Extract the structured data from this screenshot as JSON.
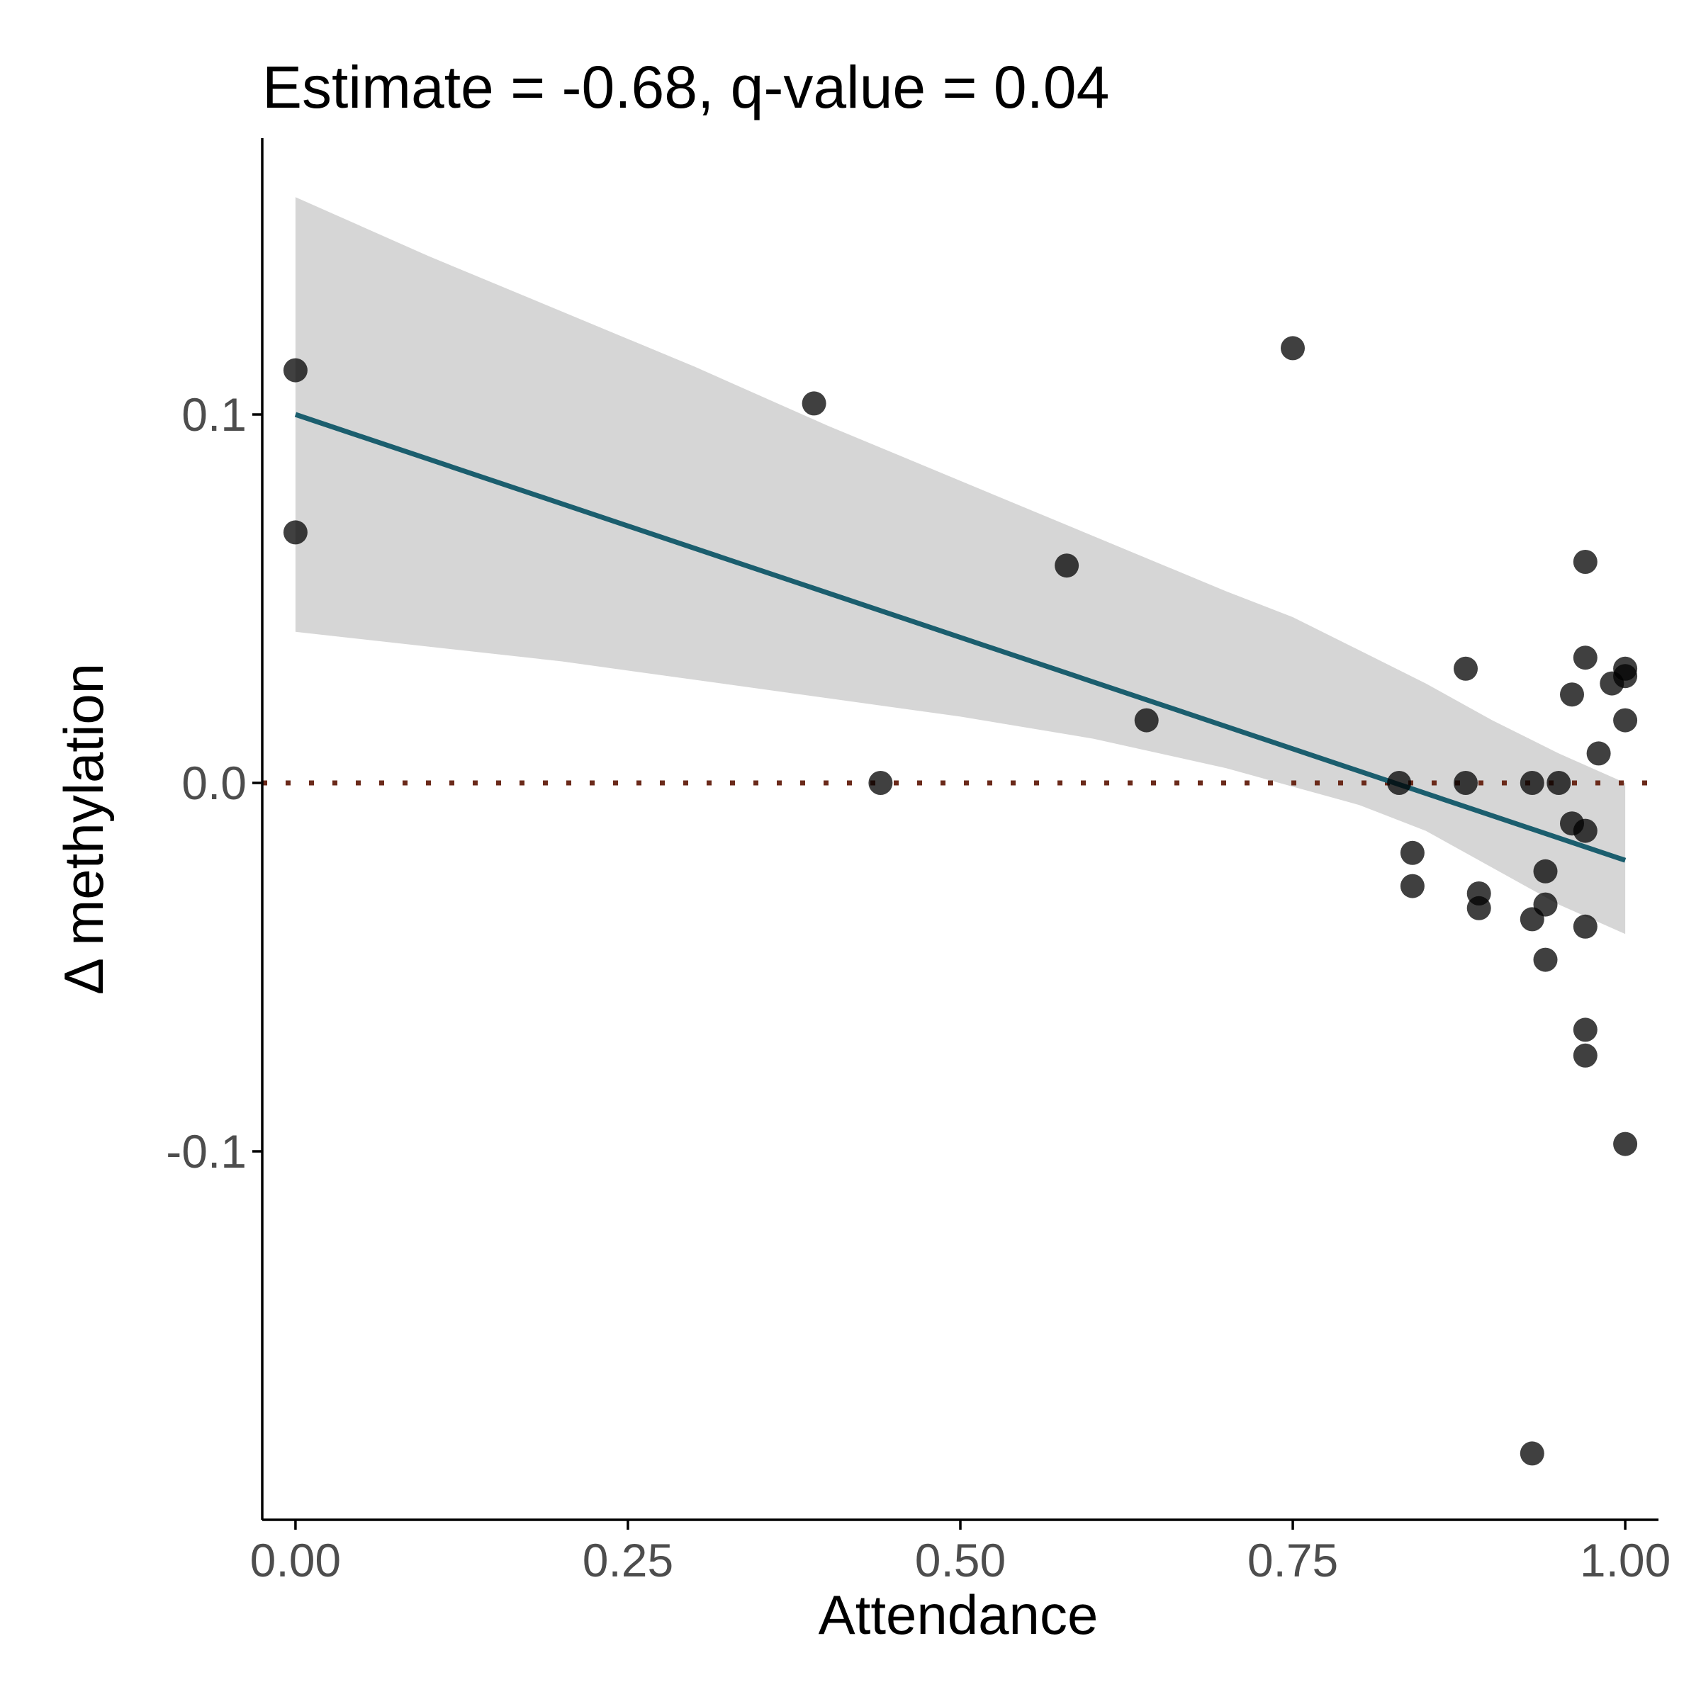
{
  "chart_data": {
    "type": "scatter",
    "title": "Estimate = -0.68, q-value = 0.04",
    "xlabel": "Attendance",
    "ylabel": "Δ methylation",
    "xlim": [
      -0.025,
      1.025
    ],
    "ylim": [
      -0.2,
      0.175
    ],
    "x_ticks": [
      0.0,
      0.25,
      0.5,
      0.75,
      1.0
    ],
    "x_tick_labels": [
      "0.00",
      "0.25",
      "0.50",
      "0.75",
      "1.00"
    ],
    "y_ticks": [
      0.1,
      0.0,
      -0.1
    ],
    "y_tick_labels": [
      "0.1",
      "0.0",
      "-0.1"
    ],
    "grid": false,
    "legend": "none",
    "colors": {
      "points": "#000000",
      "fit_line": "#1b5e6e",
      "confidence_band": "#d6d6d6",
      "reference_line": "#6b2a1a",
      "axis": "#000000"
    },
    "reference_line": {
      "y": 0.0,
      "style": "dotted"
    },
    "fit": {
      "x": [
        0.0,
        1.0
      ],
      "y": [
        0.1,
        -0.021
      ]
    },
    "confidence_band": {
      "x": [
        0.0,
        0.1,
        0.2,
        0.3,
        0.4,
        0.5,
        0.6,
        0.7,
        0.75,
        0.8,
        0.85,
        0.9,
        0.95,
        1.0
      ],
      "upper": [
        0.159,
        0.143,
        0.128,
        0.113,
        0.097,
        0.082,
        0.067,
        0.052,
        0.045,
        0.036,
        0.027,
        0.017,
        0.008,
        0.0
      ],
      "lower": [
        0.041,
        0.037,
        0.033,
        0.028,
        0.023,
        0.018,
        0.012,
        0.004,
        -0.001,
        -0.006,
        -0.013,
        -0.023,
        -0.033,
        -0.041
      ]
    },
    "points": [
      {
        "x": 0.0,
        "y": 0.112
      },
      {
        "x": 0.0,
        "y": 0.068
      },
      {
        "x": 0.39,
        "y": 0.103
      },
      {
        "x": 0.44,
        "y": 0.0
      },
      {
        "x": 0.58,
        "y": 0.059
      },
      {
        "x": 0.64,
        "y": 0.017
      },
      {
        "x": 0.75,
        "y": 0.118
      },
      {
        "x": 0.83,
        "y": 0.0
      },
      {
        "x": 0.84,
        "y": -0.019
      },
      {
        "x": 0.84,
        "y": -0.028
      },
      {
        "x": 0.88,
        "y": 0.031
      },
      {
        "x": 0.88,
        "y": 0.0
      },
      {
        "x": 0.89,
        "y": -0.03
      },
      {
        "x": 0.89,
        "y": -0.034
      },
      {
        "x": 0.93,
        "y": 0.0
      },
      {
        "x": 0.93,
        "y": -0.037
      },
      {
        "x": 0.93,
        "y": -0.182
      },
      {
        "x": 0.94,
        "y": -0.024
      },
      {
        "x": 0.94,
        "y": -0.033
      },
      {
        "x": 0.94,
        "y": -0.048
      },
      {
        "x": 0.95,
        "y": 0.0
      },
      {
        "x": 0.96,
        "y": 0.024
      },
      {
        "x": 0.96,
        "y": -0.011
      },
      {
        "x": 0.97,
        "y": 0.06
      },
      {
        "x": 0.97,
        "y": 0.034
      },
      {
        "x": 0.97,
        "y": -0.013
      },
      {
        "x": 0.97,
        "y": -0.039
      },
      {
        "x": 0.97,
        "y": -0.067
      },
      {
        "x": 0.97,
        "y": -0.074
      },
      {
        "x": 0.98,
        "y": 0.008
      },
      {
        "x": 0.99,
        "y": 0.027
      },
      {
        "x": 1.0,
        "y": 0.031
      },
      {
        "x": 1.0,
        "y": 0.029
      },
      {
        "x": 1.0,
        "y": 0.017
      },
      {
        "x": 1.0,
        "y": -0.098
      }
    ]
  }
}
